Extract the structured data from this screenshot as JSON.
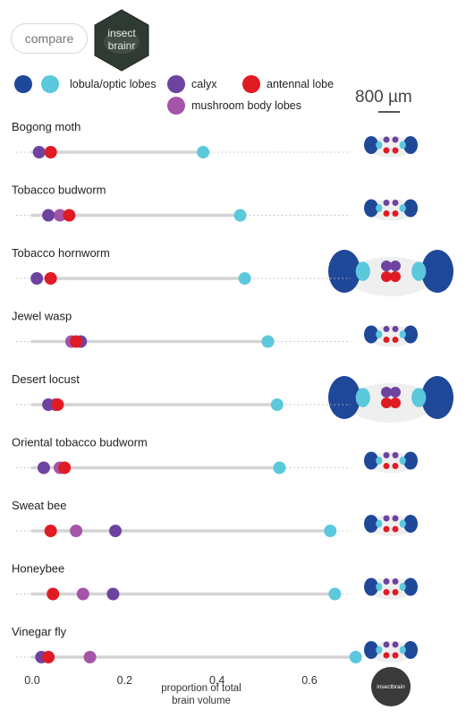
{
  "toolbar": {
    "compare_label": "compare"
  },
  "logo": {
    "line1": "insect",
    "line2": "brainr",
    "color": "#2f3a33"
  },
  "legend": [
    {
      "label": "lobula/optic lobes",
      "colors": [
        "#1f4899",
        "#5bc8dc"
      ]
    },
    {
      "label": "calyx",
      "colors": [
        "#6e43a0"
      ]
    },
    {
      "label": "antennal lobe",
      "colors": [
        "#e01b24"
      ]
    },
    {
      "label": "mushroom body lobes",
      "colors": [
        "#a455a8"
      ]
    }
  ],
  "scale_bar": {
    "label": "800 µm"
  },
  "badge": {
    "label": "insectbrain"
  },
  "chart_data": {
    "type": "dot",
    "xlabel": "proportion of total brain volume",
    "xlabel_lines": [
      "proportion of total",
      "brain volume"
    ],
    "xlim": [
      0,
      0.75
    ],
    "xticks": [
      0.0,
      0.2,
      0.4,
      0.6
    ],
    "tick_labels": [
      "0.0",
      "0.2",
      "0.4",
      "0.6"
    ],
    "colors": {
      "lobula_optic_lobes": "#5bc8dc",
      "calyx": "#6e43a0",
      "antennal_lobe": "#e01b24",
      "mushroom_body_lobes": "#a455a8"
    },
    "species": [
      {
        "name": "Bogong moth",
        "calyx": 0.015,
        "mushroom_body_lobes": null,
        "antennal_lobe": 0.04,
        "lobula_optic_lobes": 0.37
      },
      {
        "name": "Tobacco budworm",
        "calyx": 0.035,
        "mushroom_body_lobes": 0.06,
        "antennal_lobe": 0.08,
        "lobula_optic_lobes": 0.45
      },
      {
        "name": "Tobacco hornworm",
        "calyx": 0.01,
        "mushroom_body_lobes": null,
        "antennal_lobe": 0.04,
        "lobula_optic_lobes": 0.46
      },
      {
        "name": "Jewel wasp",
        "calyx": 0.105,
        "mushroom_body_lobes": 0.085,
        "antennal_lobe": 0.095,
        "lobula_optic_lobes": 0.51
      },
      {
        "name": "Desert locust",
        "calyx": 0.035,
        "mushroom_body_lobes": 0.05,
        "antennal_lobe": 0.055,
        "lobula_optic_lobes": 0.53
      },
      {
        "name": "Oriental tobacco budworm",
        "calyx": 0.025,
        "mushroom_body_lobes": 0.06,
        "antennal_lobe": 0.07,
        "lobula_optic_lobes": 0.535
      },
      {
        "name": "Sweat bee",
        "calyx": 0.18,
        "mushroom_body_lobes": 0.095,
        "antennal_lobe": 0.04,
        "lobula_optic_lobes": 0.645
      },
      {
        "name": "Honeybee",
        "calyx": 0.175,
        "mushroom_body_lobes": 0.11,
        "antennal_lobe": 0.045,
        "lobula_optic_lobes": 0.655
      },
      {
        "name": "Vinegar fly",
        "calyx": 0.02,
        "mushroom_body_lobes": 0.125,
        "antennal_lobe": 0.035,
        "lobula_optic_lobes": 0.7
      }
    ]
  }
}
